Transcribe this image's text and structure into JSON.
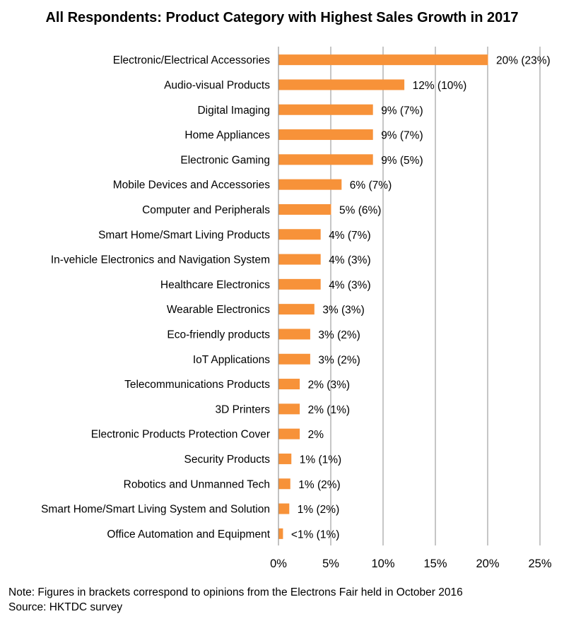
{
  "chart_data": {
    "type": "bar",
    "orientation": "horizontal",
    "title": "All Respondents: Product Category with Highest Sales Growth in 2017",
    "xlabel": "",
    "ylabel": "",
    "xlim": [
      0,
      25
    ],
    "x_ticks": [
      "0%",
      "5%",
      "10%",
      "15%",
      "20%",
      "25%"
    ],
    "grid": "vertical",
    "bar_color": "#F79239",
    "categories": [
      "Electronic/Electrical Accessories",
      "Audio-visual Products",
      "Digital Imaging",
      "Home Appliances",
      "Electronic Gaming",
      "Mobile Devices and Accessories",
      "Computer and Peripherals",
      "Smart Home/Smart Living Products",
      "In-vehicle Electronics and Navigation System",
      "Healthcare Electronics",
      "Wearable Electronics",
      "Eco-friendly products",
      "IoT Applications",
      "Telecommunications Products",
      "3D Printers",
      "Electronic Products Protection Cover",
      "Security Products",
      "Robotics and Unmanned Tech",
      "Smart Home/Smart Living System and Solution",
      "Office Automation and Equipment"
    ],
    "values": [
      20,
      12,
      9,
      9,
      9,
      6,
      5,
      4,
      4,
      4,
      3.4,
      3,
      3,
      2,
      2,
      2,
      1.2,
      1.1,
      1,
      0.4
    ],
    "data_labels": [
      "20% (23%)",
      "12% (10%)",
      "9% (7%)",
      "9% (7%)",
      "9% (5%)",
      "6% (7%)",
      "5% (6%)",
      "4% (7%)",
      "4% (3%)",
      "4% (3%)",
      "3% (3%)",
      "3% (2%)",
      "3% (2%)",
      "2% (3%)",
      "2% (1%)",
      "2%",
      "1% (1%)",
      "1% (2%)",
      "1% (2%)",
      "<1% (1%)"
    ]
  },
  "notes": {
    "note": "Note: Figures in brackets correspond to opinions from the Electrons Fair held in October 2016",
    "source": "Source: HKTDC survey"
  }
}
